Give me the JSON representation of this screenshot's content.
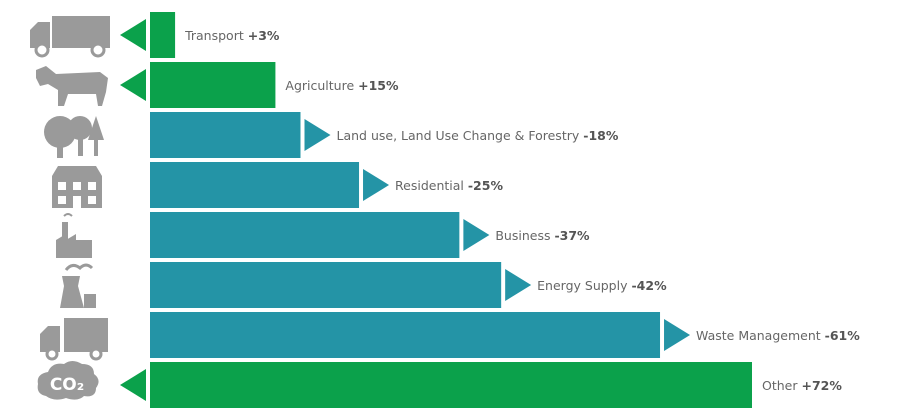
{
  "chart_data": {
    "type": "bar",
    "orientation": "horizontal",
    "categories": [
      "Transport",
      "Agriculture",
      "Land use, Land Use Change & Forestry",
      "Residential",
      "Business",
      "Energy Supply",
      "Waste Management",
      "Other"
    ],
    "values": [
      3,
      15,
      -18,
      -25,
      -37,
      -42,
      -61,
      72
    ],
    "value_labels": [
      "+3%",
      "+15%",
      "-18%",
      "-25%",
      "-37%",
      "-42%",
      "-61%",
      "+72%"
    ],
    "positive_color": "#0ba14b",
    "negative_color": "#2494a6",
    "icon_label": "CO₂"
  }
}
